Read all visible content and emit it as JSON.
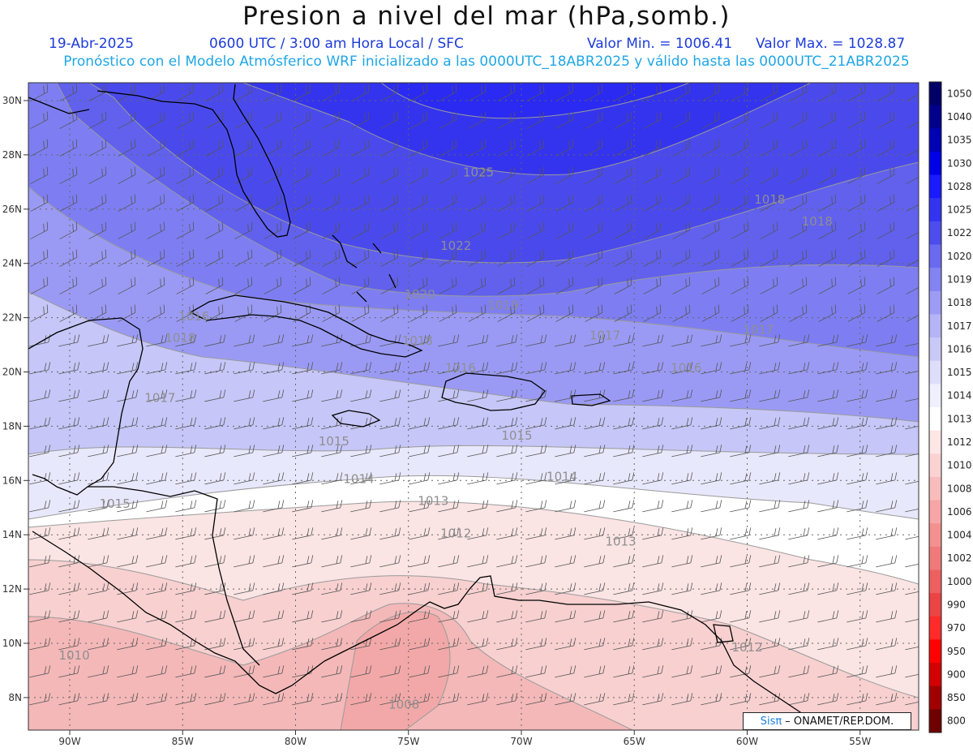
{
  "header": {
    "title": "Presion a nivel del mar (hPa,somb.)",
    "date": "19-Abr-2025",
    "time": "0600 UTC / 3:00 am Hora Local / SFC",
    "min": "Valor Min. = 1006.41",
    "max": "Valor Max. = 1028.87",
    "forecast": "Pronóstico con el Modelo Atmósferico WRF inicializado a las 0000UTC_18ABR2025 y válido hasta las  0000UTC_21ABR2025"
  },
  "axes": {
    "lon_labels": [
      "90W",
      "85W",
      "80W",
      "75W",
      "70W",
      "65W",
      "60W",
      "55W"
    ],
    "lat_labels": [
      "30N",
      "28N",
      "26N",
      "24N",
      "22N",
      "20N",
      "18N",
      "16N",
      "14N",
      "12N",
      "10N",
      "8N"
    ]
  },
  "colorbar": {
    "levels": [
      "1050",
      "1040",
      "1035",
      "1030",
      "1028",
      "1025",
      "1022",
      "1020",
      "1019",
      "1018",
      "1017",
      "1016",
      "1015",
      "1014",
      "1013",
      "1012",
      "1010",
      "1008",
      "1006",
      "1004",
      "1002",
      "1000",
      "990",
      "970",
      "950",
      "900",
      "850",
      "800"
    ],
    "colors": [
      "#000066",
      "#00008c",
      "#0000b4",
      "#0000e6",
      "#1a1aff",
      "#3333f2",
      "#4d4dee",
      "#6a6af0",
      "#8383f2",
      "#9c9cf4",
      "#b4b4f6",
      "#c9c9f8",
      "#dedefb",
      "#efeffd",
      "#ffffff",
      "#fde6e6",
      "#fbd2d2",
      "#f9bcbc",
      "#f6a6a6",
      "#f39090",
      "#f07a7a",
      "#ed6060",
      "#ea4444",
      "#ff2a2a",
      "#ff0000",
      "#d20000",
      "#a00000",
      "#6e0000"
    ]
  },
  "contour_labels": [
    {
      "text": "1025",
      "lon": -71.9,
      "lat": 27.2
    },
    {
      "text": "1022",
      "lon": -72.9,
      "lat": 24.5
    },
    {
      "text": "1020",
      "lon": -74.5,
      "lat": 22.7
    },
    {
      "text": "1019",
      "lon": -70.8,
      "lat": 22.3
    },
    {
      "text": "1018",
      "lon": -59.0,
      "lat": 26.2
    },
    {
      "text": "1018",
      "lon": -56.9,
      "lat": 25.4
    },
    {
      "text": "1018",
      "lon": -85.1,
      "lat": 21.1
    },
    {
      "text": "1018",
      "lon": -74.6,
      "lat": 21.0
    },
    {
      "text": "1017",
      "lon": -66.3,
      "lat": 21.2
    },
    {
      "text": "1017",
      "lon": -59.5,
      "lat": 21.4
    },
    {
      "text": "1017",
      "lon": -86.0,
      "lat": 18.9
    },
    {
      "text": "1016",
      "lon": -84.5,
      "lat": 21.9
    },
    {
      "text": "1016",
      "lon": -62.7,
      "lat": 20.0
    },
    {
      "text": "1016",
      "lon": -72.7,
      "lat": 20.0
    },
    {
      "text": "1015",
      "lon": -78.3,
      "lat": 17.3
    },
    {
      "text": "1015",
      "lon": -70.2,
      "lat": 17.5
    },
    {
      "text": "1015",
      "lon": -88.0,
      "lat": 15.0
    },
    {
      "text": "1014",
      "lon": -77.2,
      "lat": 15.9
    },
    {
      "text": "1014",
      "lon": -68.2,
      "lat": 16.0
    },
    {
      "text": "1013",
      "lon": -73.9,
      "lat": 15.1
    },
    {
      "text": "1013",
      "lon": -65.6,
      "lat": 13.6
    },
    {
      "text": "1012",
      "lon": -72.9,
      "lat": 13.9
    },
    {
      "text": "1012",
      "lon": -60.0,
      "lat": 9.7
    },
    {
      "text": "1010",
      "lon": -89.8,
      "lat": 9.4
    },
    {
      "text": "1008",
      "lon": -75.2,
      "lat": 7.6
    }
  ],
  "credit": {
    "sis": "Sisπ",
    "rest": "– ONAMET/REP.DOM."
  }
}
